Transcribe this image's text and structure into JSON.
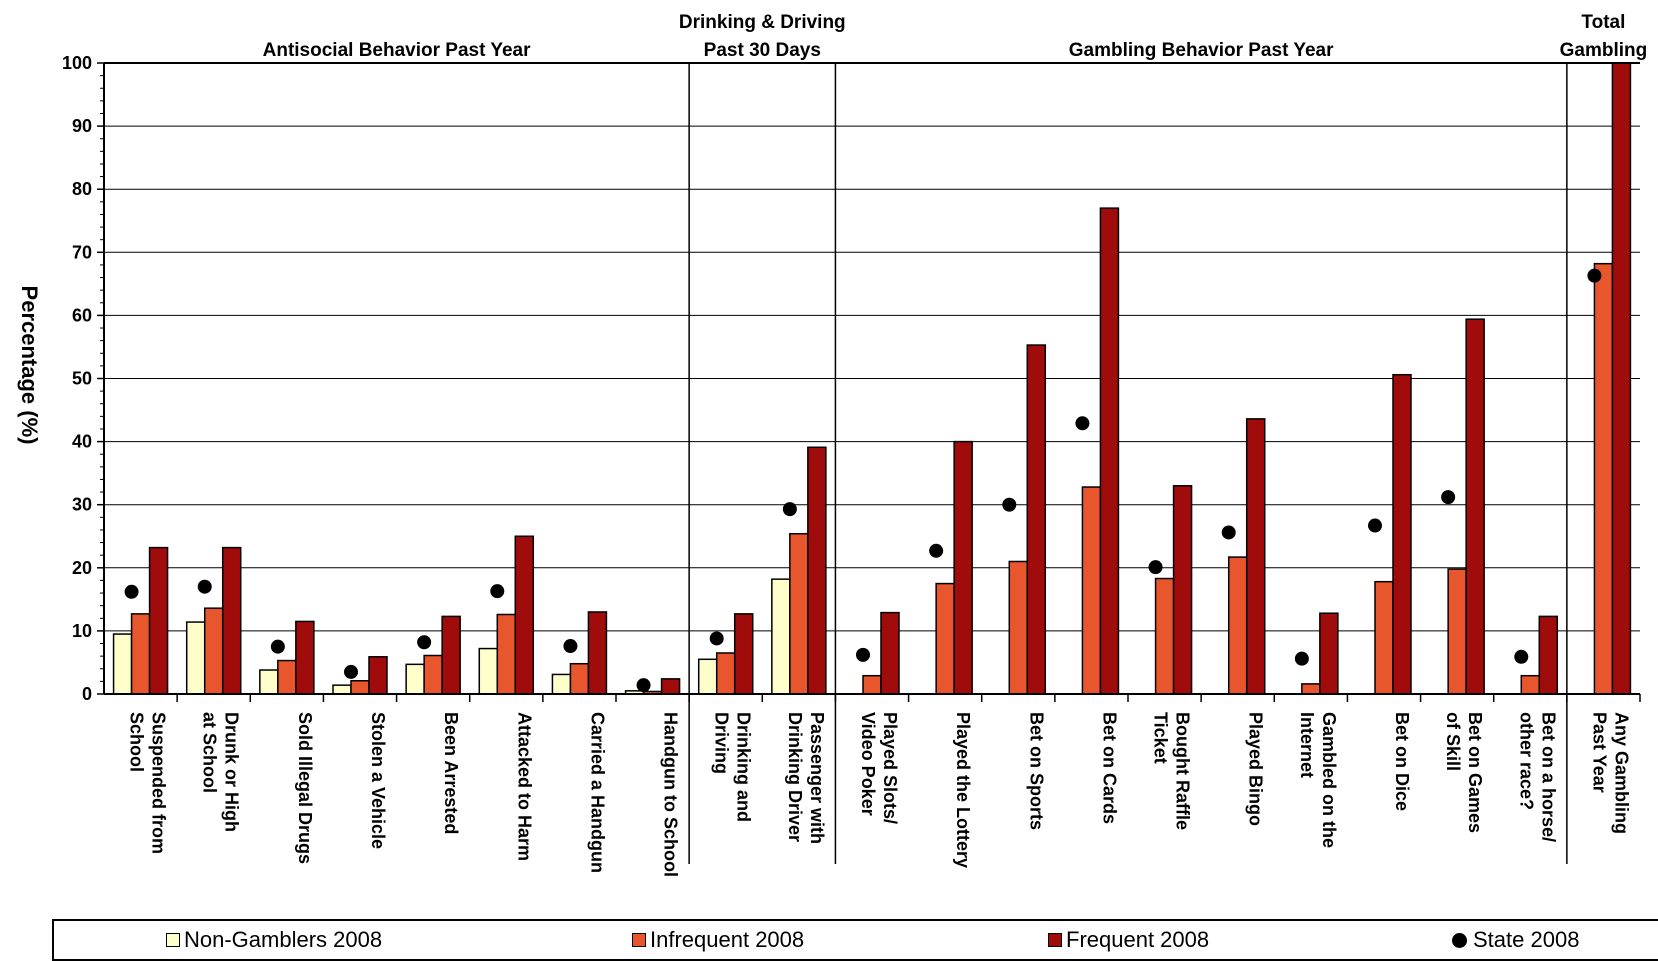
{
  "chart_data": {
    "type": "bar",
    "ylabel": "Percentage (%)",
    "ylim": [
      0,
      100
    ],
    "yticks": [
      0,
      10,
      20,
      30,
      40,
      50,
      60,
      70,
      80,
      90,
      100
    ],
    "grid": true,
    "legend_position": "bottom",
    "sections": [
      {
        "label": [
          "Antisocial Behavior Past Year"
        ],
        "start": 0,
        "end": 8
      },
      {
        "label": [
          "Drinking & Driving",
          "Past 30 Days"
        ],
        "start": 8,
        "end": 10
      },
      {
        "label": [
          "Gambling Behavior Past Year"
        ],
        "start": 10,
        "end": 20
      },
      {
        "label": [
          "Total",
          "Gambling"
        ],
        "start": 20,
        "end": 21
      }
    ],
    "categories": [
      [
        "Suspended from",
        "School"
      ],
      [
        "Drunk or High",
        "at School"
      ],
      [
        "Sold Illegal Drugs"
      ],
      [
        "Stolen a Vehicle"
      ],
      [
        "Been Arrested"
      ],
      [
        "Attacked to Harm"
      ],
      [
        "Carried a Handgun"
      ],
      [
        "Handgun to School"
      ],
      [
        "Drinking and",
        "Driving"
      ],
      [
        "Passenger with",
        "Drinking Driver"
      ],
      [
        "Played Slots/",
        "Video Poker"
      ],
      [
        "Played the Lottery"
      ],
      [
        "Bet on Sports"
      ],
      [
        "Bet on Cards"
      ],
      [
        "Bought Raffle",
        "Ticket"
      ],
      [
        "Played Bingo"
      ],
      [
        "Gambled on the",
        "Internet"
      ],
      [
        "Bet on Dice"
      ],
      [
        "Bet on Games",
        "of Skill"
      ],
      [
        "Bet on a horse/",
        "other race?"
      ],
      [
        "Any Gambling",
        "Past Year"
      ]
    ],
    "series": [
      {
        "name": "Non-Gamblers 2008",
        "color": "#FFFFCC",
        "values": [
          9.5,
          11.4,
          3.8,
          1.4,
          4.7,
          7.2,
          3.1,
          0.5,
          5.5,
          18.2,
          null,
          null,
          null,
          null,
          null,
          null,
          null,
          null,
          null,
          null,
          null
        ]
      },
      {
        "name": "Infrequent 2008",
        "color": "#E8562E",
        "values": [
          12.7,
          13.6,
          5.3,
          2.1,
          6.1,
          12.6,
          4.8,
          0.4,
          6.5,
          25.4,
          2.9,
          17.5,
          21.0,
          32.8,
          18.3,
          21.7,
          1.6,
          17.8,
          19.8,
          2.9,
          68.2
        ]
      },
      {
        "name": "Frequent 2008",
        "color": "#A00C0C",
        "values": [
          23.2,
          23.2,
          11.5,
          5.9,
          12.3,
          25.0,
          13.0,
          2.4,
          12.7,
          39.1,
          12.9,
          40.0,
          55.3,
          77.0,
          33.0,
          43.6,
          12.8,
          50.6,
          59.4,
          12.3,
          100.0
        ]
      },
      {
        "name": "State 2008",
        "type": "marker",
        "color": "#000000",
        "values": [
          16.2,
          17.0,
          7.5,
          3.5,
          8.2,
          16.3,
          7.6,
          1.4,
          8.8,
          29.3,
          6.2,
          22.7,
          30.0,
          42.9,
          20.1,
          25.6,
          5.6,
          26.7,
          31.2,
          5.9,
          66.3
        ]
      }
    ]
  }
}
